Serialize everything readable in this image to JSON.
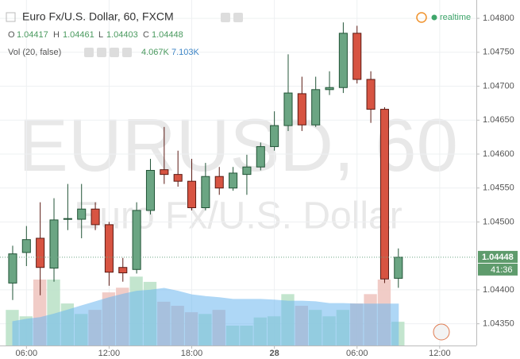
{
  "chart_data": {
    "type": "candlestick",
    "title": "Euro Fx/U.S. Dollar, 60, FXCM",
    "status": "realtime",
    "labels": {
      "open": "O",
      "high": "H",
      "low": "L",
      "close": "C",
      "volume": "Vol (20, false)"
    },
    "volume_text": "4.067K",
    "volume_ma_text": "7.103K",
    "countdown": "41:36",
    "watermark": {
      "symbol": "EURUSD, 60",
      "description": "Euro Fx/U.S. Dollar"
    },
    "open": [
      1.0441,
      1.04455,
      1.04476,
      1.04432,
      1.04504,
      1.04504,
      1.04519,
      1.04496,
      1.04433,
      1.0443,
      1.04517,
      1.04577,
      1.0457,
      1.0456,
      1.04521,
      1.04567,
      1.0455,
      1.0457,
      1.04581,
      1.04611,
      1.04642,
      1.04689,
      1.04643,
      1.04695,
      1.04698,
      1.04778,
      1.0471,
      1.04666,
      1.04417
    ],
    "high": [
      1.04465,
      1.04494,
      1.04529,
      1.04535,
      1.04556,
      1.04556,
      1.04529,
      1.045,
      1.04447,
      1.04529,
      1.04593,
      1.0464,
      1.04605,
      1.04593,
      1.04587,
      1.04581,
      1.04581,
      1.04599,
      1.04617,
      1.04663,
      1.04747,
      1.04714,
      1.04714,
      1.04722,
      1.04794,
      1.04789,
      1.04722,
      1.04669,
      1.04461
    ],
    "low": [
      1.04385,
      1.04435,
      1.04392,
      1.04412,
      1.04488,
      1.04476,
      1.04488,
      1.04406,
      1.04412,
      1.04424,
      1.04511,
      1.04556,
      1.04552,
      1.04517,
      1.04517,
      1.0454,
      1.04546,
      1.0454,
      1.04576,
      1.04605,
      1.04634,
      1.04634,
      1.0464,
      1.04687,
      1.0469,
      1.04704,
      1.04646,
      1.0441,
      1.04403
    ],
    "close": [
      1.04453,
      1.04474,
      1.04433,
      1.04503,
      1.04505,
      1.04519,
      1.04496,
      1.04426,
      1.04425,
      1.04517,
      1.04576,
      1.0457,
      1.0456,
      1.04521,
      1.04567,
      1.0455,
      1.04572,
      1.04581,
      1.04611,
      1.04642,
      1.0469,
      1.04643,
      1.04695,
      1.04698,
      1.04778,
      1.0471,
      1.04666,
      1.04416,
      1.04448
    ],
    "volume": [
      6.1,
      5.0,
      11.3,
      11.3,
      7.2,
      5.4,
      6.1,
      9.1,
      9.9,
      11.8,
      10.9,
      7.5,
      6.8,
      5.7,
      5.4,
      6.1,
      3.4,
      3.4,
      4.8,
      5.0,
      8.8,
      6.8,
      6.1,
      5.0,
      6.1,
      7.2,
      8.8,
      11.3,
      4.067
    ],
    "volume_ma": [
      4.1,
      4.5,
      4.8,
      5.4,
      6.1,
      6.8,
      7.5,
      8.2,
      8.8,
      9.3,
      9.5,
      9.8,
      9.3,
      8.7,
      8.4,
      8.2,
      7.9,
      7.9,
      7.9,
      7.8,
      7.6,
      7.6,
      7.5,
      7.2,
      7.2,
      7.1,
      7.1,
      7.1,
      7.103
    ],
    "colors": {
      "up": "#6ba583",
      "up_border": "#225437",
      "down": "#d75442",
      "down_border": "#5b1a13",
      "volume_up": "#b9e0c6",
      "volume_down": "#efc3bd",
      "volume_ma": "#6cb8f0"
    },
    "xlim": [
      -0.92,
      33.66
    ],
    "xticks": [
      {
        "value": 1,
        "label": "06:00"
      },
      {
        "value": 7,
        "label": "12:00"
      },
      {
        "value": 13,
        "label": "18:00"
      },
      {
        "value": 19,
        "label": "28"
      },
      {
        "value": 25,
        "label": "06:00"
      },
      {
        "value": 31,
        "label": "12:00"
      }
    ],
    "ylim": [
      1.04318,
      1.04827
    ],
    "yticks": [
      {
        "value": 1.048,
        "label": "1.04800"
      },
      {
        "value": 1.0475,
        "label": "1.04750"
      },
      {
        "value": 1.047,
        "label": "1.04700"
      },
      {
        "value": 1.0465,
        "label": "1.04650"
      },
      {
        "value": 1.046,
        "label": "1.04600"
      },
      {
        "value": 1.0455,
        "label": "1.04550"
      },
      {
        "value": 1.045,
        "label": "1.04500"
      },
      {
        "value": 1.044,
        "label": "1.04400"
      },
      {
        "value": 1.0435,
        "label": "1.04350"
      }
    ],
    "grid": true
  }
}
